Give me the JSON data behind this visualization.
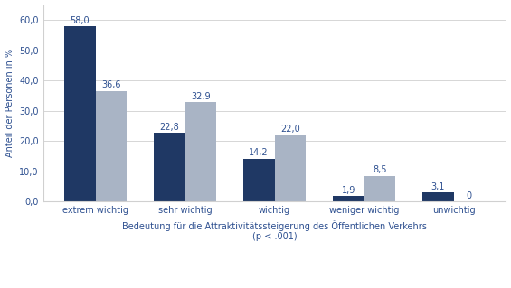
{
  "categories": [
    "extrem wichtig",
    "sehr wichtig",
    "wichtig",
    "weniger wichtig",
    "unwichtig"
  ],
  "series1_values": [
    58.0,
    22.8,
    14.2,
    1.9,
    3.1
  ],
  "series2_values": [
    36.6,
    32.9,
    22.0,
    8.5,
    0
  ],
  "series1_color": "#1f3864",
  "series2_color": "#a9b4c5",
  "ylabel": "Anteil der Personen in %",
  "xlabel": "Bedeutung für die Attraktivitätssteigerung des Öffentlichen Verkehrs\n(p < .001)",
  "ylim": [
    0,
    65
  ],
  "yticks": [
    0.0,
    10.0,
    20.0,
    30.0,
    40.0,
    50.0,
    60.0
  ],
  "ytick_labels": [
    "0,0",
    "10,0",
    "20,0",
    "30,0",
    "40,0",
    "50,0",
    "60,0"
  ],
  "bar_width": 0.35,
  "figure_width": 5.65,
  "figure_height": 3.19,
  "dpi": 100,
  "background_color": "#ffffff",
  "grid_color": "#d0d0d0",
  "text_color": "#2e5090",
  "label_fontsize": 7.0,
  "tick_fontsize": 7.0,
  "legend_fontsize": 7.5,
  "value_fontsize": 7.0
}
